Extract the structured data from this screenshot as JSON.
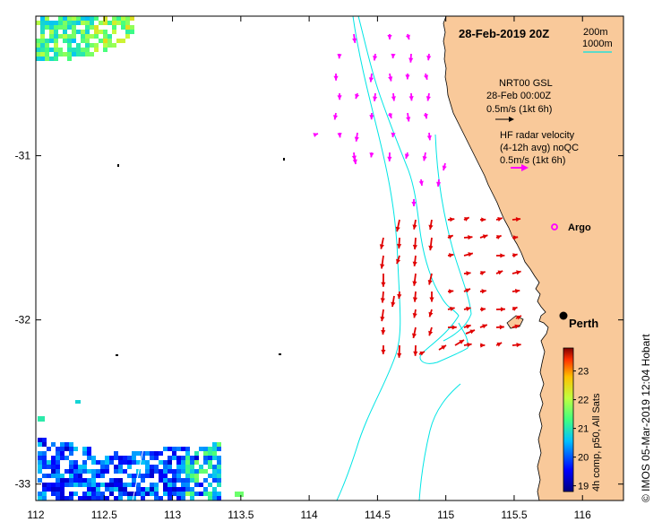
{
  "map": {
    "title": "28-Feb-2019 20Z",
    "depth_legend": {
      "contour_1": "200m",
      "contour_2": "1000m"
    },
    "nrt_legend": {
      "line1": "NRT00 GSL",
      "line2": "28-Feb 00:00Z",
      "line3": "0.5m/s (1kt 6h)"
    },
    "hf_legend": {
      "line1": "HF radar velocity",
      "line2": "(4-12h avg) noQC",
      "line3": "0.5m/s (1kt 6h)"
    },
    "argo_label": "Argo",
    "city_label": "Perth",
    "credit": "© IMOS 05-Mar-2019 12:04 Hobart",
    "colors": {
      "land": "#f9c99a",
      "contour": "#00e5e5",
      "hf_vectors": "#ff00ff",
      "gsl_vectors": "#e00000"
    }
  },
  "chart_data": {
    "type": "map",
    "x_axis": {
      "label": "",
      "lim": [
        112,
        116.3
      ],
      "tick_labels": [
        "112",
        "112.5",
        "113",
        "113.5",
        "114",
        "114.5",
        "115",
        "115.5",
        "116"
      ]
    },
    "y_axis": {
      "label": "",
      "lim": [
        -33.1,
        -30.15
      ],
      "tick_labels": [
        "-31",
        "-32",
        "-33"
      ]
    },
    "colorbar": {
      "label": "4h comp, p50, All Sats",
      "range": [
        18.8,
        23.8
      ],
      "tick_labels": [
        "19",
        "20",
        "21",
        "22",
        "23"
      ]
    }
  }
}
